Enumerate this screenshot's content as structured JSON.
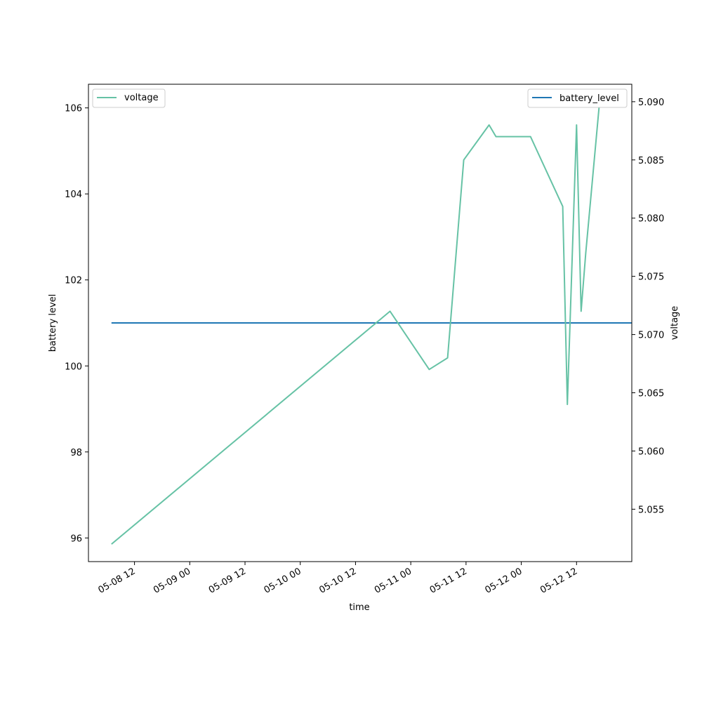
{
  "chart_data": {
    "type": "line",
    "xlabel": "time",
    "ylabel_left": "battery level",
    "ylabel_right": "voltage",
    "x_ticks": [
      "05-08 12",
      "05-09 00",
      "05-09 12",
      "05-10 00",
      "05-10 12",
      "05-11 00",
      "05-11 12",
      "05-12 00",
      "05-12 12"
    ],
    "y_left_ticks": [
      "96",
      "98",
      "100",
      "102",
      "104",
      "106"
    ],
    "y_right_ticks": [
      "5.055",
      "5.060",
      "5.065",
      "5.070",
      "5.075",
      "5.080",
      "5.085",
      "5.090"
    ],
    "xlim": [
      "2023-05-08 02:00",
      "2023-05-13 00:00"
    ],
    "ylim_left": [
      95.45,
      106.55
    ],
    "ylim_right": [
      5.0505,
      5.0915
    ],
    "grid": false,
    "series": [
      {
        "name": "battery_level",
        "axis": "left",
        "color": "#1f77b4",
        "legend": "top-right",
        "points": [
          {
            "x": "2023-05-08 07:00",
            "y": 101
          },
          {
            "x": "2023-05-13 00:00",
            "y": 101
          }
        ]
      },
      {
        "name": "voltage",
        "axis": "right",
        "color": "#66c2a5",
        "legend": "top-left",
        "points": [
          {
            "x": "2023-05-08 07:00",
            "y": 5.052
          },
          {
            "x": "2023-05-10 19:30",
            "y": 5.072
          },
          {
            "x": "2023-05-11 04:00",
            "y": 5.067
          },
          {
            "x": "2023-05-11 08:00",
            "y": 5.068
          },
          {
            "x": "2023-05-11 11:30",
            "y": 5.085
          },
          {
            "x": "2023-05-11 17:00",
            "y": 5.088
          },
          {
            "x": "2023-05-11 18:30",
            "y": 5.087
          },
          {
            "x": "2023-05-12 02:00",
            "y": 5.087
          },
          {
            "x": "2023-05-12 09:00",
            "y": 5.081
          },
          {
            "x": "2023-05-12 10:00",
            "y": 5.064
          },
          {
            "x": "2023-05-12 12:00",
            "y": 5.088
          },
          {
            "x": "2023-05-12 13:00",
            "y": 5.072
          },
          {
            "x": "2023-05-12 14:00",
            "y": 5.077
          },
          {
            "x": "2023-05-12 17:00",
            "y": 5.09
          }
        ]
      }
    ]
  }
}
